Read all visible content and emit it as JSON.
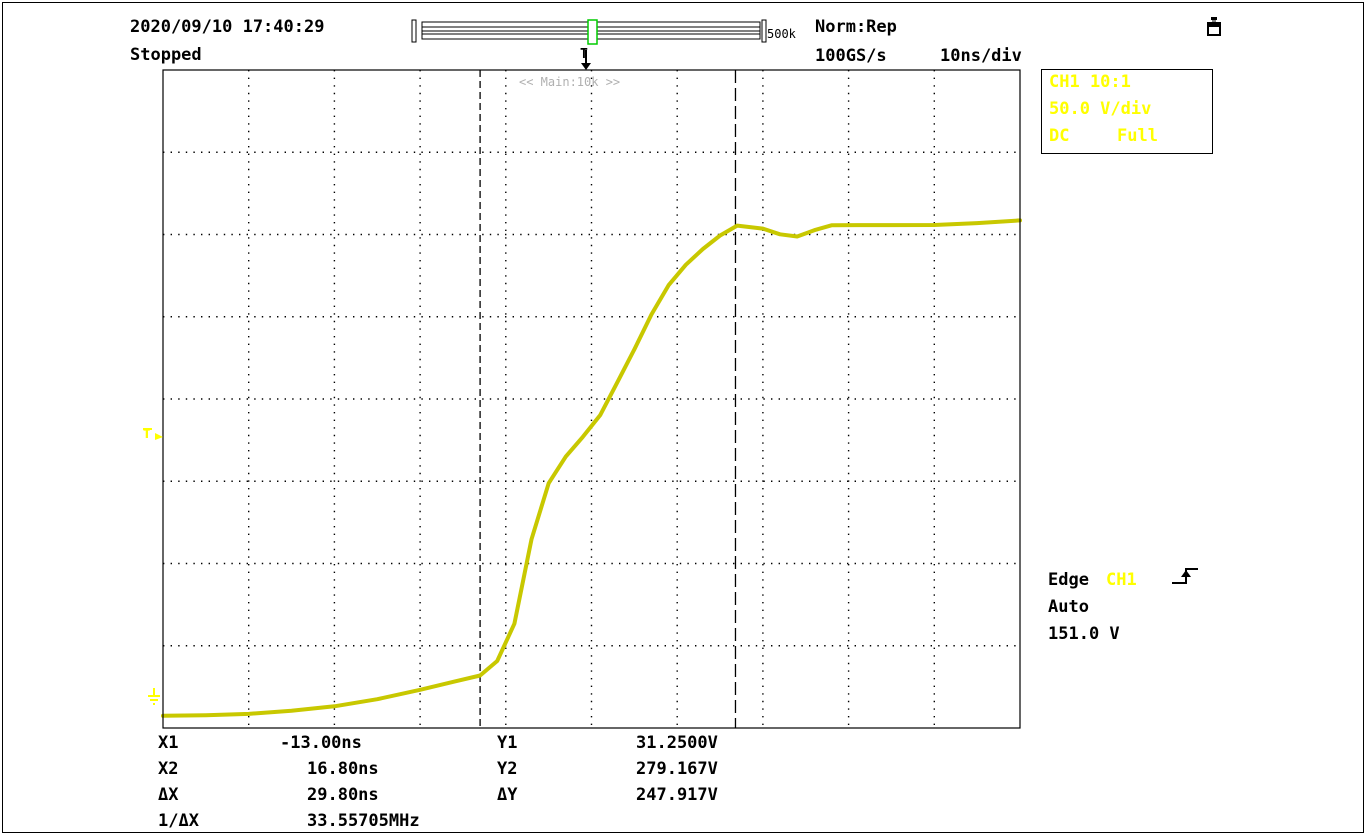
{
  "header": {
    "datetime": "2020/09/10 17:40:29",
    "status": "Stopped",
    "record_length": "500k",
    "trigger_mode": "Norm:Rep",
    "sample_rate": "100GS/s",
    "timebase": "10ns/div",
    "trigger_marker": "T",
    "zoom_label": "<< Main:10k >>",
    "printer_icon": "printer-icon"
  },
  "channel": {
    "line1": "CH1 10:1",
    "line2": "50.0 V/div",
    "coupling": "DC",
    "bandwidth": "Full",
    "color": "#ffff00"
  },
  "trigger": {
    "type": "Edge",
    "source": "CH1",
    "mode": "Auto",
    "level": "151.0 V",
    "level_marker": "T",
    "slope_icon": "rising-edge-icon"
  },
  "cursors": {
    "x1_label": "X1",
    "x1_value": "-13.00ns",
    "x2_label": "X2",
    "x2_value": "16.80ns",
    "dx_label": "ΔX",
    "dx_value": "29.80ns",
    "inv_dx_label": "1/ΔX",
    "inv_dx_value": "33.55705MHz",
    "y1_label": "Y1",
    "y1_value": "31.2500V",
    "y2_label": "Y2",
    "y2_value": "279.167V",
    "dy_label": "ΔY",
    "dy_value": "247.917V"
  },
  "chart_data": {
    "type": "line",
    "x_unit": "ns",
    "y_unit": "V",
    "xlim": [
      -50,
      50
    ],
    "ylim": [
      0,
      400
    ],
    "grid": true,
    "x_divisions": 10,
    "y_divisions": 8,
    "cursor_x": [
      -13.0,
      16.8
    ],
    "series": [
      {
        "color": "#c8c800",
        "x": [
          -50,
          -45,
          -40,
          -35,
          -30,
          -25,
          -20,
          -16,
          -13,
          -11,
          -9,
          -7,
          -5,
          -3,
          -1,
          1,
          3,
          5,
          7,
          9,
          11,
          13,
          15,
          17,
          20,
          22,
          24,
          26,
          28,
          31,
          35,
          40,
          45,
          50
        ],
        "y": [
          7.4,
          7.7,
          8.6,
          10.5,
          13.2,
          17.5,
          23.2,
          28.2,
          31.9,
          40.7,
          63.4,
          114.7,
          148.8,
          165.0,
          177.0,
          190.1,
          210.0,
          230.2,
          251.4,
          269.2,
          281.6,
          291.2,
          299.4,
          305.4,
          303.6,
          300.1,
          298.8,
          302.6,
          305.6,
          305.7,
          305.7,
          305.8,
          306.9,
          308.6
        ]
      }
    ]
  }
}
